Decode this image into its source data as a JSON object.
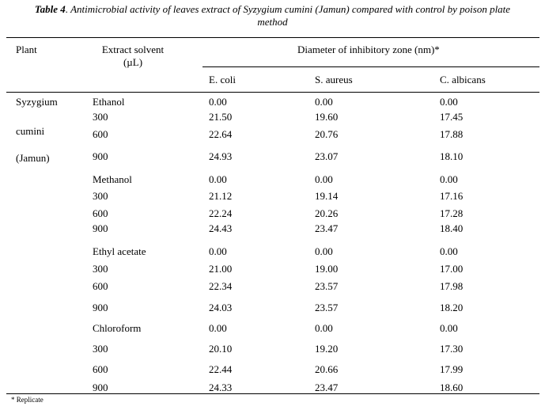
{
  "caption": {
    "label": "Table 4",
    "text": ". Antimicrobial activity of leaves extract of Syzygium cumini (Jamun) compared with control by poison plate",
    "text2": "method"
  },
  "headers": {
    "plant": "Plant",
    "solvent_line1": "Extract solvent",
    "solvent_line2": "(µL)",
    "diameter": "Diameter of inhibitory zone (nm)*",
    "ecoli": "E. coli",
    "saureus": "S. aureus",
    "calbicans": "C. albicans"
  },
  "plant_names": [
    "Syzygium",
    "cumini",
    "(Jamun)"
  ],
  "rows": [
    {
      "solvent": "Ethanol",
      "ecoli": "0.00",
      "saureus": "0.00",
      "calbicans": "0.00"
    },
    {
      "solvent": "300",
      "ecoli": "21.50",
      "saureus": "19.60",
      "calbicans": "17.45"
    },
    {
      "solvent": "600",
      "ecoli": "22.64",
      "saureus": "20.76",
      "calbicans": "17.88"
    },
    {
      "solvent": "900",
      "ecoli": "24.93",
      "saureus": "23.07",
      "calbicans": "18.10"
    },
    {
      "solvent": "Methanol",
      "ecoli": "0.00",
      "saureus": "0.00",
      "calbicans": "0.00"
    },
    {
      "solvent": "300",
      "ecoli": "21.12",
      "saureus": "19.14",
      "calbicans": "17.16"
    },
    {
      "solvent": "600",
      "ecoli": "22.24",
      "saureus": "20.26",
      "calbicans": "17.28"
    },
    {
      "solvent": "900",
      "ecoli": "24.43",
      "saureus": "23.47",
      "calbicans": "18.40"
    },
    {
      "solvent": "Ethyl acetate",
      "ecoli": "0.00",
      "saureus": "0.00",
      "calbicans": "0.00"
    },
    {
      "solvent": "300",
      "ecoli": "21.00",
      "saureus": "19.00",
      "calbicans": "17.00"
    },
    {
      "solvent": "600",
      "ecoli": "22.34",
      "saureus": "23.57",
      "calbicans": "17.98"
    },
    {
      "solvent": "900",
      "ecoli": "24.03",
      "saureus": "23.57",
      "calbicans": "18.20"
    },
    {
      "solvent": "Chloroform",
      "ecoli": "0.00",
      "saureus": "0.00",
      "calbicans": "0.00"
    },
    {
      "solvent": "300",
      "ecoli": "20.10",
      "saureus": "19.20",
      "calbicans": "17.30"
    },
    {
      "solvent": "600",
      "ecoli": "22.44",
      "saureus": "20.66",
      "calbicans": "17.99"
    },
    {
      "solvent": "900",
      "ecoli": "24.33",
      "saureus": "23.47",
      "calbicans": "18.60"
    }
  ],
  "footnote": "* Replicate"
}
